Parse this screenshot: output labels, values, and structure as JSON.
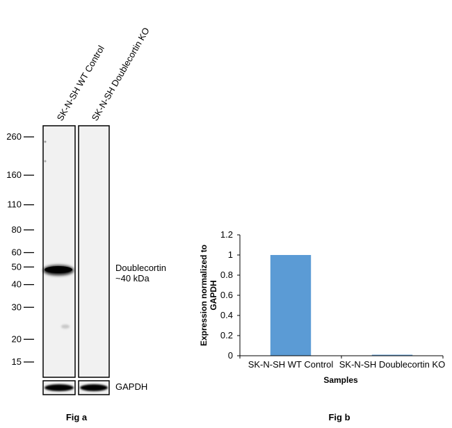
{
  "chart_data": [
    {
      "type": "western-blot",
      "caption": "Fig a",
      "lanes": [
        "SK-N-SH WT Control",
        "SK-N-SH Doublecortin KO"
      ],
      "mw_markers": [
        260,
        160,
        110,
        80,
        60,
        50,
        40,
        30,
        20,
        15
      ],
      "band_label": "Doublecortin",
      "band_size": "~40 kDa",
      "loading_control": "GAPDH",
      "band_kda": 40
    },
    {
      "type": "bar",
      "caption": "Fig b",
      "categories": [
        "SK-N-SH WT Control",
        "SK-N-SH Doublecortin KO"
      ],
      "values": [
        1.0,
        0.01
      ],
      "ylabel_line1": "Expression normalized to",
      "ylabel_line2": "GAPDH",
      "xlabel": "Samples",
      "ylim": [
        0,
        1.2
      ],
      "yticks": [
        "0",
        "0.2",
        "0.4",
        "0.6",
        "0.8",
        "1",
        "1.2"
      ],
      "bar_color": "#5b9bd5"
    }
  ]
}
